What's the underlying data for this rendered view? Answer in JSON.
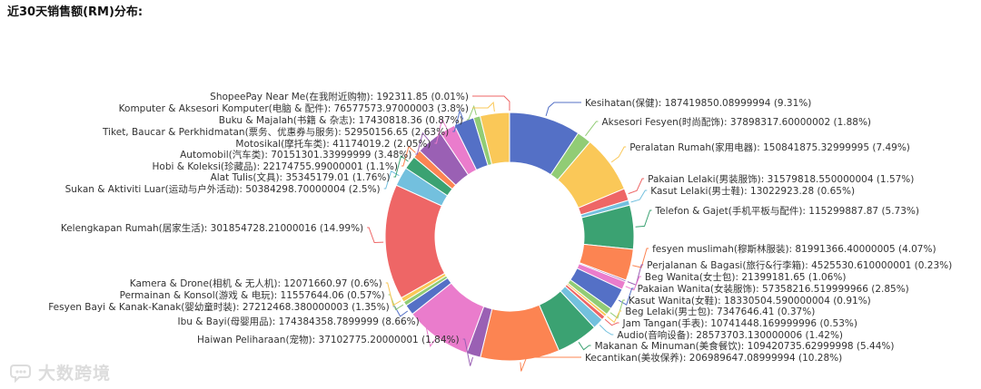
{
  "chart_data": {
    "type": "pie",
    "title": "近30天销售额(RM)分布:",
    "legend": "none",
    "slices": [
      {
        "label": "Kesihatan(保健): 187419850.08999994 (9.31%)",
        "value": 187419850.08999994,
        "percent": 9.31,
        "color": "#5470c6"
      },
      {
        "label": "Aksesori Fesyen(时尚配饰): 37898317.60000002 (1.88%)",
        "value": 37898317.60000002,
        "percent": 1.88,
        "color": "#91cc75"
      },
      {
        "label": "Peralatan Rumah(家用电器): 150841875.32999995 (7.49%)",
        "value": 150841875.32999995,
        "percent": 7.49,
        "color": "#fac858"
      },
      {
        "label": "Pakaian Lelaki(男装服饰): 31579818.550000004 (1.57%)",
        "value": 31579818.550000004,
        "percent": 1.57,
        "color": "#ee6666"
      },
      {
        "label": "Kasut Lelaki(男士鞋): 13022923.28 (0.65%)",
        "value": 13022923.28,
        "percent": 0.65,
        "color": "#73c0de"
      },
      {
        "label": "Telefon & Gajet(手机平板与配件): 115299887.87 (5.73%)",
        "value": 115299887.87,
        "percent": 5.73,
        "color": "#3ba272"
      },
      {
        "label": "fesyen muslimah(穆斯林服装): 81991366.40000005 (4.07%)",
        "value": 81991366.40000005,
        "percent": 4.07,
        "color": "#fc8452"
      },
      {
        "label": "Perjalanan & Bagasi(旅行&行李箱): 4525530.610000001 (0.23%)",
        "value": 4525530.610000001,
        "percent": 0.23,
        "color": "#9a60b4"
      },
      {
        "label": "Beg Wanita(女士包): 21399181.65 (1.06%)",
        "value": 21399181.65,
        "percent": 1.06,
        "color": "#ea7ccc"
      },
      {
        "label": "Pakaian Wanita(女装服饰): 57358216.519999966 (2.85%)",
        "value": 57358216.519999966,
        "percent": 2.85,
        "color": "#5470c6"
      },
      {
        "label": "Kasut Wanita(女鞋): 18330504.590000004 (0.91%)",
        "value": 18330504.590000004,
        "percent": 0.91,
        "color": "#91cc75"
      },
      {
        "label": "Beg Lelaki(男士包): 7347646.41 (0.37%)",
        "value": 7347646.41,
        "percent": 0.37,
        "color": "#fac858"
      },
      {
        "label": "Jam Tangan(手表): 10741448.169999996 (0.53%)",
        "value": 10741448.169999996,
        "percent": 0.53,
        "color": "#ee6666"
      },
      {
        "label": "Audio(音响设备): 28573703.130000006 (1.42%)",
        "value": 28573703.130000006,
        "percent": 1.42,
        "color": "#73c0de"
      },
      {
        "label": "Makanan & Minuman(美食餐饮): 109420735.62999998 (5.44%)",
        "value": 109420735.62999998,
        "percent": 5.44,
        "color": "#3ba272"
      },
      {
        "label": "Kecantikan(美妆保养): 206989647.08999994 (10.28%)",
        "value": 206989647.08999994,
        "percent": 10.28,
        "color": "#fc8452"
      },
      {
        "label": "Haiwan Peliharaan(宠物): 37102775.20000001 (1.84%)",
        "value": 37102775.20000001,
        "percent": 1.84,
        "color": "#9a60b4"
      },
      {
        "label": "Ibu & Bayi(母婴用品): 174384358.7899999 (8.66%)",
        "value": 174384358.7899999,
        "percent": 8.66,
        "color": "#ea7ccc"
      },
      {
        "label": "Fesyen Bayi & Kanak-Kanak(婴幼童时装): 27212468.380000003 (1.35%)",
        "value": 27212468.380000003,
        "percent": 1.35,
        "color": "#5470c6"
      },
      {
        "label": "Permainan & Konsol(游戏 & 电玩): 11557644.06 (0.57%)",
        "value": 11557644.06,
        "percent": 0.57,
        "color": "#91cc75"
      },
      {
        "label": "Kamera & Drone(相机 & 无人机): 12071660.97 (0.6%)",
        "value": 12071660.97,
        "percent": 0.6,
        "color": "#fac858"
      },
      {
        "label": "Kelengkapan Rumah(居家生活): 301854728.21000016 (14.99%)",
        "value": 301854728.21000016,
        "percent": 14.99,
        "color": "#ee6666"
      },
      {
        "label": "Sukan & Aktiviti Luar(运动与户外活动): 50384298.70000004 (2.5%)",
        "value": 50384298.70000004,
        "percent": 2.5,
        "color": "#73c0de"
      },
      {
        "label": "Alat Tulis(文具): 35345179.01 (1.76%)",
        "value": 35345179.01,
        "percent": 1.76,
        "color": "#3ba272"
      },
      {
        "label": "Hobi & Koleksi(珍藏品): 22174755.99000001 (1.1%)",
        "value": 22174755.99000001,
        "percent": 1.1,
        "color": "#fc8452"
      },
      {
        "label": "Automobil(汽车类): 70151301.33999999 (3.48%)",
        "value": 70151301.33999999,
        "percent": 3.48,
        "color": "#9a60b4"
      },
      {
        "label": "Motosikal(摩托车类): 41174019.2 (2.05%)",
        "value": 41174019.2,
        "percent": 2.05,
        "color": "#ea7ccc"
      },
      {
        "label": "Tiket, Baucar & Perkhidmatan(票务、优惠券与服务): 52950156.65 (2.63%)",
        "value": 52950156.65,
        "percent": 2.63,
        "color": "#5470c6"
      },
      {
        "label": "Buku & Majalah(书籍 & 杂志): 17430818.36 (0.87%)",
        "value": 17430818.36,
        "percent": 0.87,
        "color": "#91cc75"
      },
      {
        "label": "Komputer & Aksesori Komputer(电脑 & 配件): 76577573.97000003 (3.8%)",
        "value": 76577573.97000003,
        "percent": 3.8,
        "color": "#fac858"
      },
      {
        "label": "ShopeePay Near Me(在我附近购物): 192311.85 (0.01%)",
        "value": 192311.85,
        "percent": 0.01,
        "color": "#ee6666"
      }
    ]
  },
  "watermark": {
    "text": "大数跨境",
    "logo_icon": "bubble-logo-icon",
    "color": "#dcdcdc"
  }
}
